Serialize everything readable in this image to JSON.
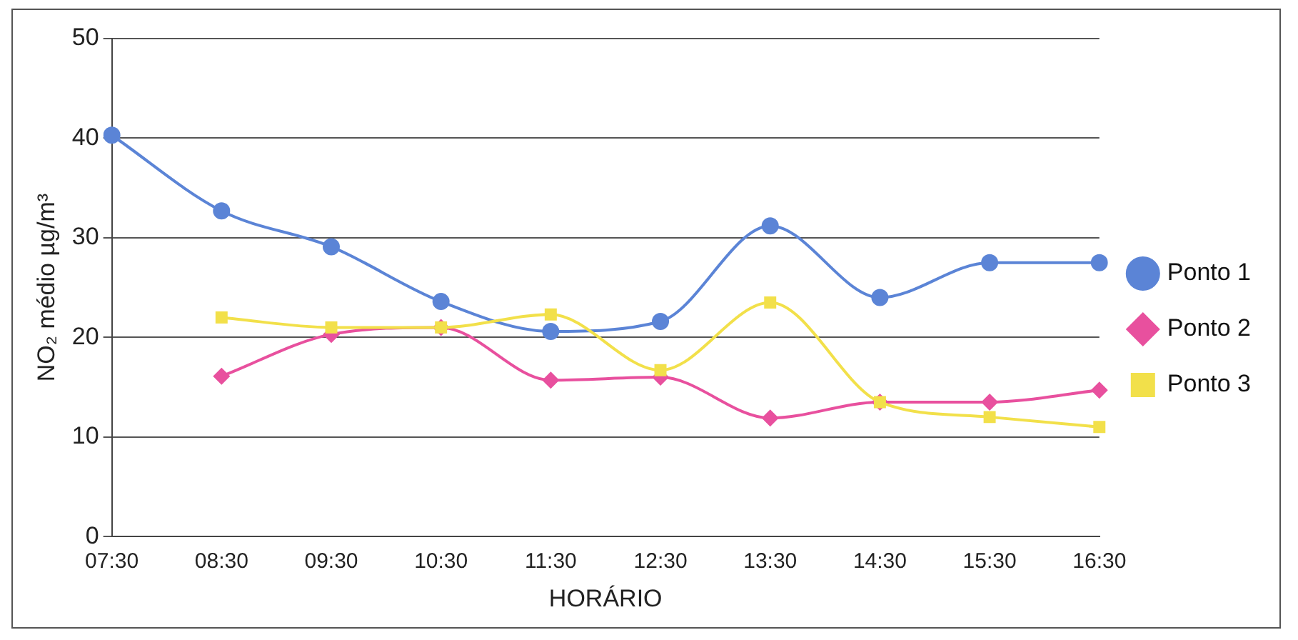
{
  "chart_data": {
    "type": "line",
    "xlabel": "HORÁRIO",
    "ylabel": "NO₂ médio µg/m³",
    "categories": [
      "07:30",
      "08:30",
      "09:30",
      "10:30",
      "11:30",
      "12:30",
      "13:30",
      "14:30",
      "15:30",
      "16:30"
    ],
    "series": [
      {
        "name": "Ponto 1",
        "color": "#5b84d6",
        "marker": "circle",
        "values": [
          40.3,
          32.7,
          29.1,
          23.6,
          20.6,
          21.6,
          31.2,
          24,
          27.5,
          27.5
        ]
      },
      {
        "name": "Ponto 2",
        "color": "#e8509e",
        "marker": "diamond",
        "values": [
          null,
          16.1,
          20.3,
          21,
          15.7,
          16,
          11.9,
          13.5,
          13.5,
          14.7
        ]
      },
      {
        "name": "Ponto 3",
        "color": "#f2e04a",
        "marker": "square",
        "values": [
          null,
          22,
          21,
          21,
          22.3,
          16.7,
          23.5,
          13.5,
          12,
          11
        ]
      }
    ],
    "ylim": [
      0,
      50
    ],
    "yticks": [
      0,
      10,
      20,
      30,
      40,
      50
    ],
    "grid": "y",
    "legend": "right"
  }
}
